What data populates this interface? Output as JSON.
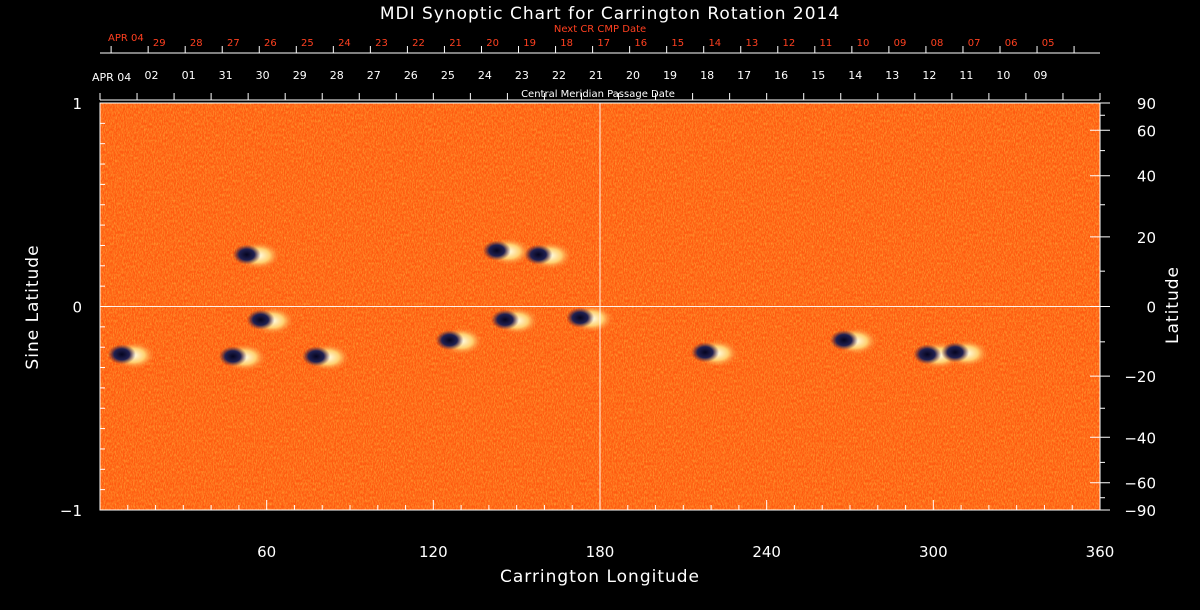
{
  "chart_data": {
    "type": "heatmap",
    "title": "MDI Synoptic Chart for Carrington Rotation 2014",
    "xlabel": "Carrington Longitude",
    "ylabel_left": "Sine Latitude",
    "ylabel_right": "Latitude",
    "xlim": [
      0,
      360
    ],
    "ylim": [
      -1,
      1
    ],
    "x_ticks": [
      60,
      120,
      180,
      240,
      300,
      360
    ],
    "y_ticks_left": [
      {
        "value": 1,
        "label": "1"
      },
      {
        "value": 0,
        "label": "0"
      },
      {
        "value": -1,
        "label": "−1"
      }
    ],
    "y_ticks_right_deg": [
      90,
      60,
      40,
      20,
      0,
      -20,
      -40,
      -60,
      -90
    ],
    "y_ticks_right_labels": [
      "90",
      "60",
      "40",
      "20",
      "0",
      "−20",
      "−40",
      "−60",
      "−90"
    ],
    "top_axis": {
      "label": "Central Meridian Passage Date",
      "start_label": "APR 04",
      "dates": [
        "02",
        "01",
        "31",
        "30",
        "29",
        "28",
        "27",
        "26",
        "25",
        "24",
        "23",
        "22",
        "21",
        "20",
        "19",
        "18",
        "17",
        "16",
        "15",
        "14",
        "13",
        "12",
        "11",
        "10",
        "09"
      ]
    },
    "next_cr_axis": {
      "label": "Next CR CMP Date",
      "start_label": "APR 04",
      "dates": [
        "29",
        "28",
        "27",
        "26",
        "25",
        "24",
        "23",
        "22",
        "21",
        "20",
        "19",
        "18",
        "17",
        "16",
        "15",
        "14",
        "13",
        "12",
        "11",
        "10",
        "09",
        "08",
        "07",
        "06",
        "05"
      ]
    },
    "crosshair": {
      "longitude": 180,
      "sine_latitude": 0
    },
    "active_regions": [
      {
        "lon": 55,
        "sinlat": 0.25
      },
      {
        "lon": 145,
        "sinlat": 0.27
      },
      {
        "lon": 160,
        "sinlat": 0.25
      },
      {
        "lon": 60,
        "sinlat": -0.07
      },
      {
        "lon": 148,
        "sinlat": -0.07
      },
      {
        "lon": 175,
        "sinlat": -0.06
      },
      {
        "lon": 10,
        "sinlat": -0.24
      },
      {
        "lon": 50,
        "sinlat": -0.25
      },
      {
        "lon": 80,
        "sinlat": -0.25
      },
      {
        "lon": 128,
        "sinlat": -0.17
      },
      {
        "lon": 220,
        "sinlat": -0.23
      },
      {
        "lon": 270,
        "sinlat": -0.17
      },
      {
        "lon": 300,
        "sinlat": -0.24
      },
      {
        "lon": 310,
        "sinlat": -0.23
      }
    ],
    "colors": {
      "background": "#000000",
      "field": "#ff5a10",
      "positive": "#ffffd0",
      "negative": "#10103a",
      "next_cr": "#ff4020",
      "axes": "#ffffff"
    }
  }
}
